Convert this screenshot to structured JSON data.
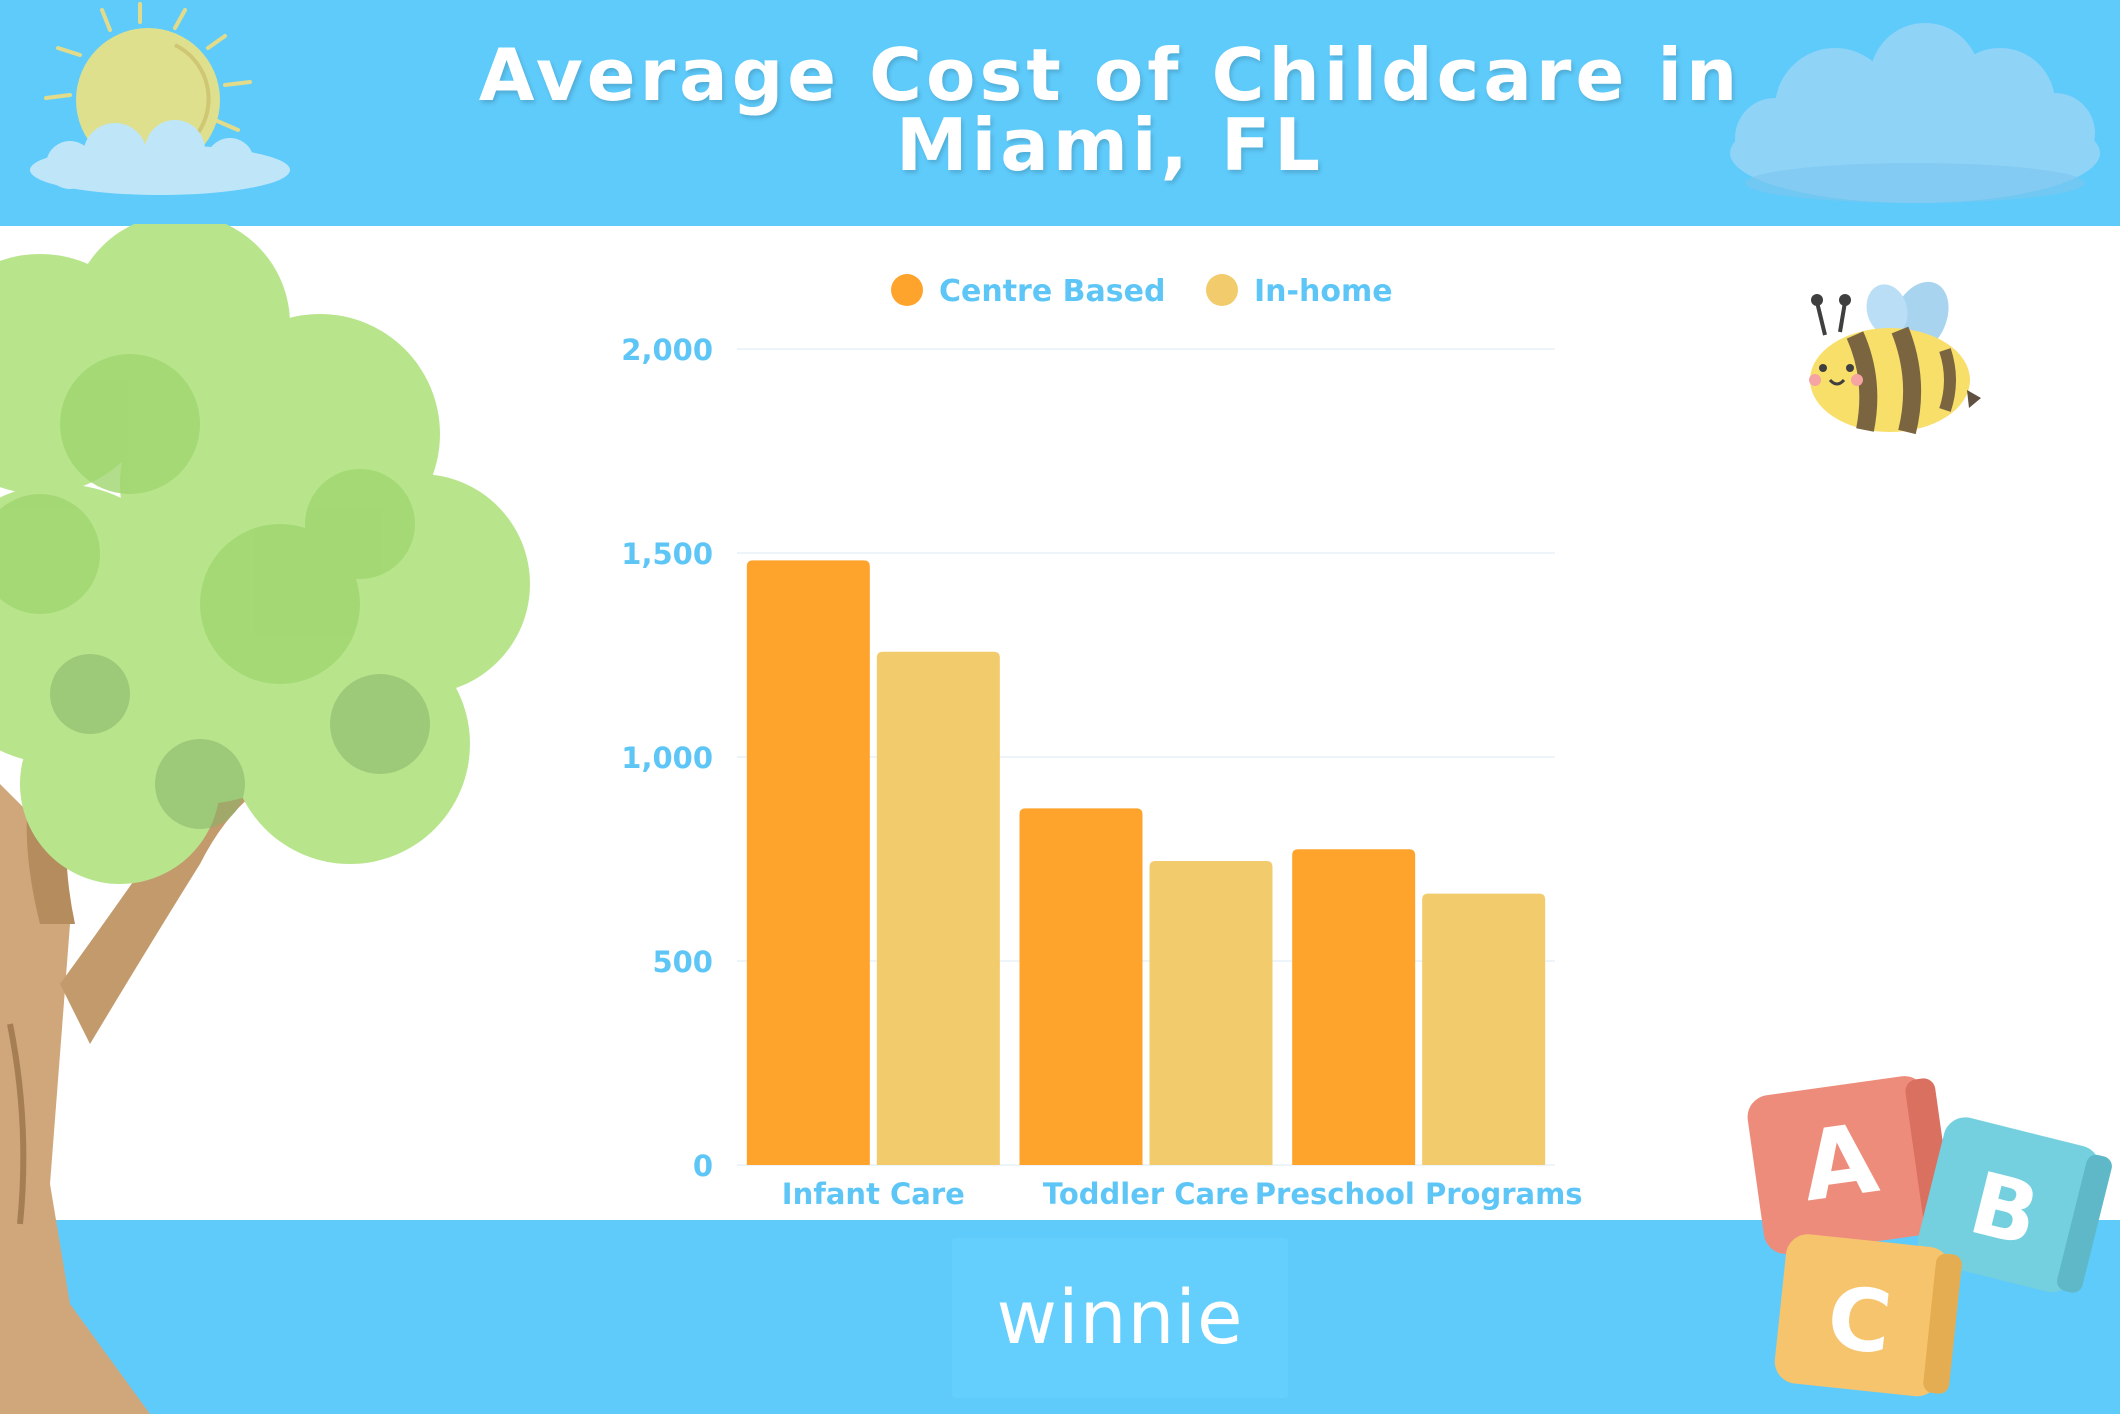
{
  "header": {
    "title": "Average Cost of Childcare in Miami, FL"
  },
  "footer": {
    "brand": "winnie"
  },
  "colors": {
    "banner": "#5fcbfb",
    "centre_based": "#fea42c",
    "in_home": "#f2cb6c",
    "axis_text": "#5ec6f6"
  },
  "decorations": [
    "sun-icon",
    "cloud-icon",
    "tree-illustration",
    "bee-icon",
    "abc-blocks-icon"
  ],
  "blocks": [
    "A",
    "B",
    "C"
  ],
  "chart_data": {
    "type": "bar",
    "title": "",
    "xlabel": "",
    "ylabel": "",
    "categories": [
      "Infant Care",
      "Toddler Care",
      "Preschool Programs"
    ],
    "series": [
      {
        "name": "Centre Based",
        "values": [
          1482,
          874,
          774
        ]
      },
      {
        "name": "In-home",
        "values": [
          1258,
          745,
          665
        ]
      }
    ],
    "ylim": [
      0,
      2000
    ],
    "yticks": [
      0,
      500,
      1000,
      1500,
      2000
    ],
    "ytick_labels": [
      "0",
      "500",
      "1,000",
      "1,500",
      "2,000"
    ],
    "grid": true,
    "legend": "top-center"
  }
}
